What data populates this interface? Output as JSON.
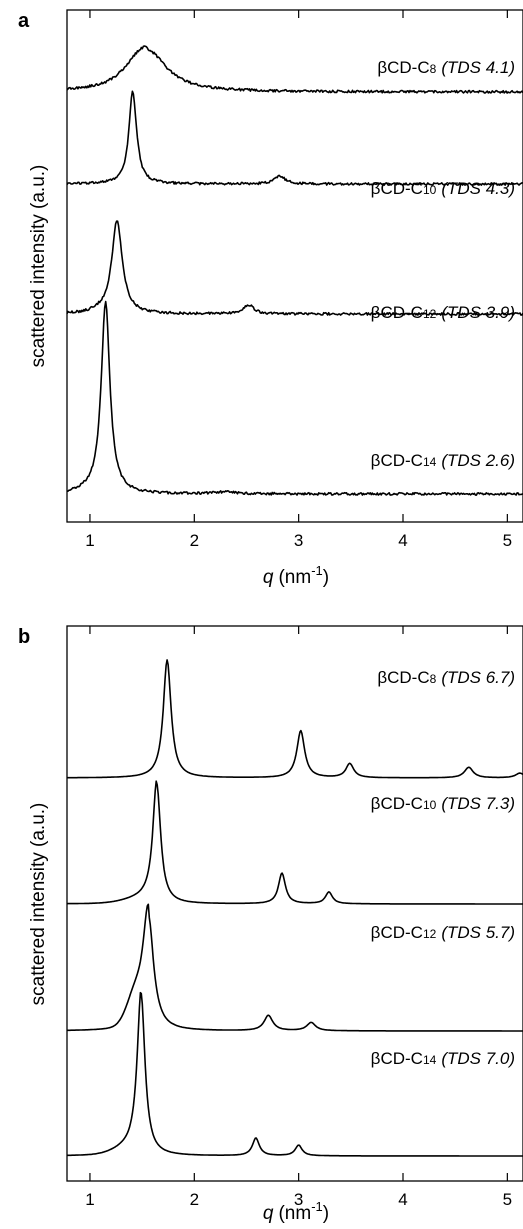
{
  "chart_data": [
    {
      "panel": "a",
      "type": "line",
      "xlabel": {
        "main": "q",
        "unit": "(nm",
        "exp": "-1",
        "close": ")"
      },
      "ylabel": "scattered intensity (a.u.)",
      "xlim": [
        0.78,
        5.15
      ],
      "xticks": [
        "1",
        "2",
        "3",
        "4",
        "5"
      ],
      "noise": 0.012,
      "series": [
        {
          "label": {
            "pre": "βCD-C",
            "sub": "8",
            "tds": "(TDS 4.1)"
          },
          "base": 0.0,
          "slope": 0.0,
          "tail": 0.05,
          "tailw": 0.18,
          "peaks": [
            {
              "q": 1.55,
              "h": 0.42,
              "w": 0.22
            }
          ]
        },
        {
          "label": {
            "pre": "βCD-C",
            "sub": "10",
            "tds": "(TDS 4.3)"
          },
          "base": 0.0,
          "slope": 0.0,
          "tail": 0.0,
          "tailw": 0.1,
          "peaks": [
            {
              "q": 1.41,
              "h": 0.92,
              "w": 0.045
            },
            {
              "q": 2.82,
              "h": 0.08,
              "w": 0.06
            }
          ]
        },
        {
          "label": {
            "pre": "βCD-C",
            "sub": "12",
            "tds": "(TDS 3.9)"
          },
          "base": 0.0,
          "slope": 0.0,
          "tail": 0.02,
          "tailw": 0.15,
          "peaks": [
            {
              "q": 1.26,
              "h": 0.93,
              "w": 0.06
            },
            {
              "q": 2.52,
              "h": 0.09,
              "w": 0.06
            }
          ]
        },
        {
          "label": {
            "pre": "βCD-C",
            "sub": "14",
            "tds": "(TDS 2.6)"
          },
          "base": 0.0,
          "slope": 0.0,
          "tail": 0.02,
          "tailw": 0.15,
          "peaks": [
            {
              "q": 1.15,
              "h": 1.92,
              "w": 0.05
            },
            {
              "q": 2.3,
              "h": 0.02,
              "w": 0.12
            }
          ]
        }
      ]
    },
    {
      "panel": "b",
      "type": "line",
      "xlabel": {
        "main": "q",
        "unit": "(nm",
        "exp": "-1",
        "close": ")"
      },
      "ylabel": "scattered intensity (a.u.)",
      "xlim": [
        0.78,
        5.15
      ],
      "xticks": [
        "1",
        "2",
        "3",
        "4",
        "5"
      ],
      "noise": 0.0,
      "series": [
        {
          "label": {
            "pre": "βCD-C",
            "sub": "8",
            "tds": "(TDS 6.7)"
          },
          "base": 0.0,
          "slope": 0.0,
          "tail": 0.0,
          "tailw": 0.1,
          "peaks": [
            {
              "q": 1.74,
              "h": 1.0,
              "w": 0.045
            },
            {
              "q": 3.02,
              "h": 0.4,
              "w": 0.045
            },
            {
              "q": 3.49,
              "h": 0.12,
              "w": 0.045
            },
            {
              "q": 4.63,
              "h": 0.09,
              "w": 0.05
            },
            {
              "q": 5.12,
              "h": 0.04,
              "w": 0.05
            }
          ]
        },
        {
          "label": {
            "pre": "βCD-C",
            "sub": "10",
            "tds": "(TDS 7.3)"
          },
          "base": 0.0,
          "slope": 0.0,
          "tail": 0.04,
          "tailw": 0.25,
          "peaks": [
            {
              "q": 1.64,
              "h": 1.02,
              "w": 0.045
            },
            {
              "q": 2.84,
              "h": 0.26,
              "w": 0.04
            },
            {
              "q": 3.29,
              "h": 0.1,
              "w": 0.04
            }
          ]
        },
        {
          "label": {
            "pre": "βCD-C",
            "sub": "12",
            "tds": "(TDS 5.7)"
          },
          "base": 0.0,
          "slope": 0.0,
          "tail": 0.25,
          "tailw": 0.12,
          "peaks": [
            {
              "q": 1.56,
              "h": 0.98,
              "w": 0.06
            },
            {
              "q": 2.71,
              "h": 0.13,
              "w": 0.05
            },
            {
              "q": 3.12,
              "h": 0.07,
              "w": 0.05
            }
          ]
        },
        {
          "label": {
            "pre": "βCD-C",
            "sub": "14",
            "tds": "(TDS 7.0)"
          },
          "base": 0.0,
          "slope": 0.0,
          "tail": 0.05,
          "tailw": 0.2,
          "peaks": [
            {
              "q": 1.49,
              "h": 1.38,
              "w": 0.045
            },
            {
              "q": 2.59,
              "h": 0.15,
              "w": 0.04
            },
            {
              "q": 3.0,
              "h": 0.09,
              "w": 0.04
            }
          ]
        }
      ]
    }
  ]
}
